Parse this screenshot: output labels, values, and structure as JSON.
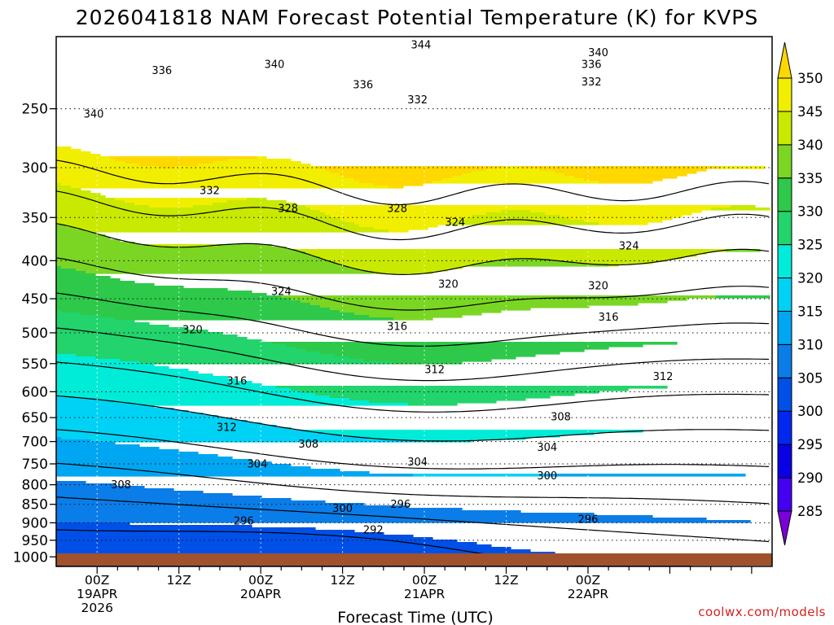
{
  "chart_data": {
    "type": "heatmap",
    "title": "2026041818 NAM Forecast Potential Temperature (K) for KVPS",
    "xlabel": "Forecast Time (UTC)",
    "ylabel": "",
    "watermark": "coolwx.com/models",
    "y_axis_scale": "log-pressure",
    "y_ticks": [
      250,
      300,
      350,
      400,
      450,
      500,
      550,
      600,
      650,
      700,
      750,
      800,
      850,
      900,
      950,
      1000
    ],
    "ylim": [
      200,
      1030
    ],
    "x_range_hours": [
      -6,
      99
    ],
    "x_ticks": [
      {
        "hour": 0,
        "l1": "00Z",
        "l2": "19APR",
        "l3": "2026"
      },
      {
        "hour": 12,
        "l1": "12Z",
        "l2": "",
        "l3": ""
      },
      {
        "hour": 24,
        "l1": "00Z",
        "l2": "20APR",
        "l3": ""
      },
      {
        "hour": 36,
        "l1": "12Z",
        "l2": "",
        "l3": ""
      },
      {
        "hour": 48,
        "l1": "00Z",
        "l2": "21APR",
        "l3": ""
      },
      {
        "hour": 60,
        "l1": "12Z",
        "l2": "",
        "l3": ""
      },
      {
        "hour": 72,
        "l1": "00Z",
        "l2": "22APR",
        "l3": ""
      }
    ],
    "grid": "dotted",
    "colorbar": {
      "placement": "right",
      "levels": [
        285,
        290,
        295,
        300,
        305,
        310,
        315,
        320,
        325,
        330,
        335,
        340,
        345,
        350
      ],
      "colors": [
        "#7a00d9",
        "#4300f0",
        "#0a00e6",
        "#0028ee",
        "#0050e8",
        "#0a7de8",
        "#00a6f2",
        "#00d2f5",
        "#00ecd8",
        "#22d46b",
        "#2ec94a",
        "#7ad623",
        "#c9e900",
        "#f2ee00",
        "#ffd800"
      ],
      "labels": [
        "285",
        "290",
        "295",
        "300",
        "305",
        "310",
        "315",
        "320",
        "325",
        "330",
        "335",
        "340",
        "345",
        "350"
      ]
    },
    "ground_color": "#a0522d",
    "contour_labels": [
      {
        "text": "344",
        "hour": 47.5,
        "p": 205
      },
      {
        "text": "340",
        "hour": 26.0,
        "p": 218
      },
      {
        "text": "340",
        "hour": 73.5,
        "p": 210
      },
      {
        "text": "336",
        "hour": 9.5,
        "p": 222
      },
      {
        "text": "336",
        "hour": 39.0,
        "p": 232
      },
      {
        "text": "336",
        "hour": 72.5,
        "p": 218
      },
      {
        "text": "332",
        "hour": 72.5,
        "p": 230
      },
      {
        "text": "332",
        "hour": 47.0,
        "p": 243
      },
      {
        "text": "340",
        "hour": -0.5,
        "p": 254
      },
      {
        "text": "332",
        "hour": 16.5,
        "p": 322
      },
      {
        "text": "328",
        "hour": 28.0,
        "p": 340
      },
      {
        "text": "328",
        "hour": 44.0,
        "p": 340
      },
      {
        "text": "324",
        "hour": 52.5,
        "p": 355
      },
      {
        "text": "324",
        "hour": 78.0,
        "p": 382
      },
      {
        "text": "324",
        "hour": 27.0,
        "p": 440
      },
      {
        "text": "320",
        "hour": 51.5,
        "p": 430
      },
      {
        "text": "320",
        "hour": 73.5,
        "p": 432
      },
      {
        "text": "320",
        "hour": 14.0,
        "p": 495
      },
      {
        "text": "316",
        "hour": 44.0,
        "p": 490
      },
      {
        "text": "316",
        "hour": 75.0,
        "p": 476
      },
      {
        "text": "316",
        "hour": 20.5,
        "p": 580
      },
      {
        "text": "312",
        "hour": 49.5,
        "p": 560
      },
      {
        "text": "312",
        "hour": 83.0,
        "p": 572
      },
      {
        "text": "312",
        "hour": 19.0,
        "p": 670
      },
      {
        "text": "308",
        "hour": 31.0,
        "p": 705
      },
      {
        "text": "308",
        "hour": 68.0,
        "p": 648
      },
      {
        "text": "304",
        "hour": 23.5,
        "p": 750
      },
      {
        "text": "304",
        "hour": 47.0,
        "p": 745
      },
      {
        "text": "304",
        "hour": 66.0,
        "p": 712
      },
      {
        "text": "300",
        "hour": 66.0,
        "p": 778
      },
      {
        "text": "300",
        "hour": 36.0,
        "p": 860
      },
      {
        "text": "308",
        "hour": 3.5,
        "p": 800
      },
      {
        "text": "296",
        "hour": 44.5,
        "p": 850
      },
      {
        "text": "296",
        "hour": 72.0,
        "p": 890
      },
      {
        "text": "296",
        "hour": 21.5,
        "p": 895
      },
      {
        "text": "292",
        "hour": 40.5,
        "p": 920
      }
    ]
  }
}
